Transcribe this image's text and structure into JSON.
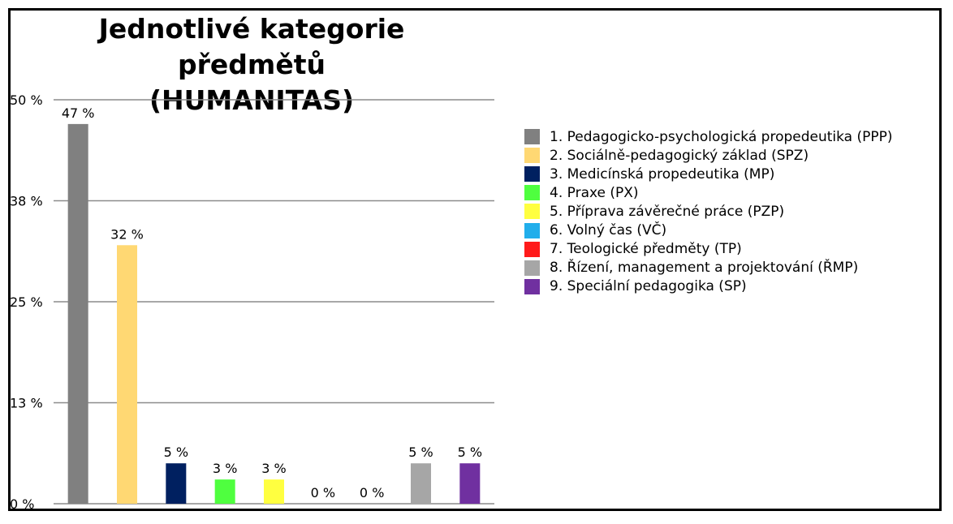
{
  "chart_data": {
    "type": "bar",
    "title": "Jednotlivé kategorie předmětů (HUMANITAS)",
    "title_lines": [
      "Jednotlivé kategorie",
      "předmětů (HUMANITAS)"
    ],
    "ylim": [
      0,
      50
    ],
    "yticks": [
      0,
      12.5,
      25,
      37.5,
      50
    ],
    "ytick_labels": [
      "0 %",
      "13 %",
      "25 %",
      "38 %",
      "50 %"
    ],
    "grid": true,
    "legend_position": "right",
    "categories": [
      "1. Pedagogicko-psychologická propedeutika (PPP)",
      "2. Sociálně-pedagogický základ (SPZ)",
      "3. Medicínská propedeutika (MP)",
      "4. Praxe (PX)",
      "5. Příprava závěrečné práce (PZP)",
      "6. Volný čas (VČ)",
      "7. Teologické předměty (TP)",
      "8. Řízení, management a projektování (ŘMP)",
      "9. Speciální pedagogika (SP)"
    ],
    "values": [
      47,
      32,
      5,
      3,
      3,
      0,
      0,
      5,
      5
    ],
    "data_labels": [
      "47 %",
      "32 %",
      "5 %",
      "3 %",
      "3 %",
      "0 %",
      "0 %",
      "5 %",
      "5 %"
    ],
    "colors": [
      "#808080",
      "#FFD873",
      "#002060",
      "#4FFF3F",
      "#FFFF40",
      "#21AEEB",
      "#FF1A1A",
      "#A6A6A6",
      "#7030A0"
    ]
  }
}
